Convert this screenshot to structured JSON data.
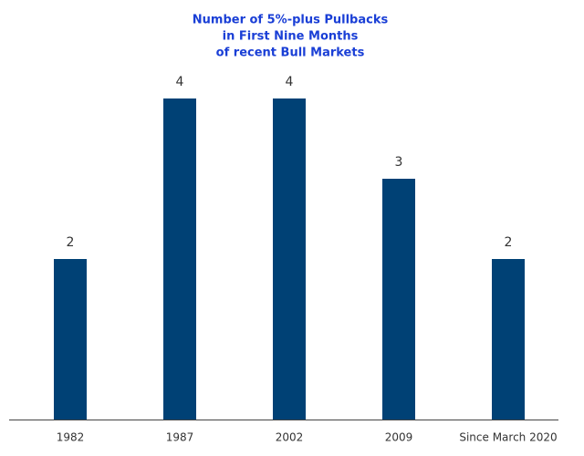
{
  "chart_data": {
    "type": "bar",
    "title": [
      "Number of 5%-plus Pullbacks",
      "in First Nine Months",
      "of recent Bull Markets"
    ],
    "categories": [
      "1982",
      "1987",
      "2002",
      "2009",
      "Since March 2020"
    ],
    "values": [
      2,
      4,
      4,
      3,
      2
    ],
    "color": "#004175"
  }
}
